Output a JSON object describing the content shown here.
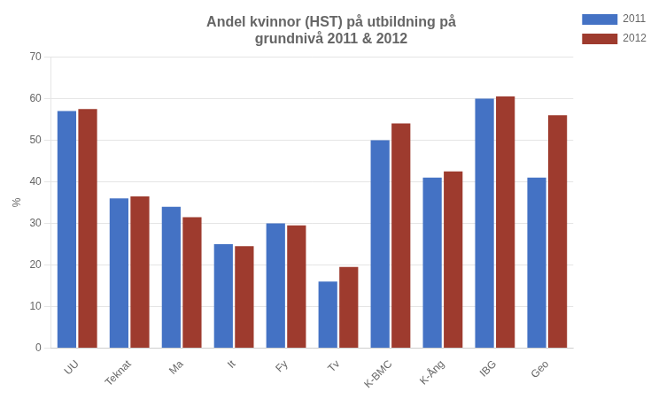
{
  "chart_data": {
    "type": "bar",
    "title": "Andel kvinnor (HST) på utbildning på\ngrundnivå 2011 & 2012",
    "categories": [
      "UU",
      "Teknat",
      "Ma",
      "It",
      "Fy",
      "Tv",
      "K-BMC",
      "K-Ång",
      "IBG",
      "Geo"
    ],
    "series": [
      {
        "name": "2011",
        "color": "#4472C4",
        "values": [
          57,
          36,
          34,
          25,
          30,
          16,
          50,
          41,
          60,
          41
        ]
      },
      {
        "name": "2012",
        "color": "#9E3B2E",
        "values": [
          57.5,
          36.5,
          31.5,
          24.5,
          29.5,
          19.5,
          54,
          42.5,
          60.5,
          56
        ]
      }
    ],
    "ylabel": "%",
    "ylim": [
      0,
      70
    ],
    "yticks": [
      0,
      10,
      20,
      30,
      40,
      50,
      60,
      70
    ],
    "grid": true,
    "legend": "right"
  }
}
